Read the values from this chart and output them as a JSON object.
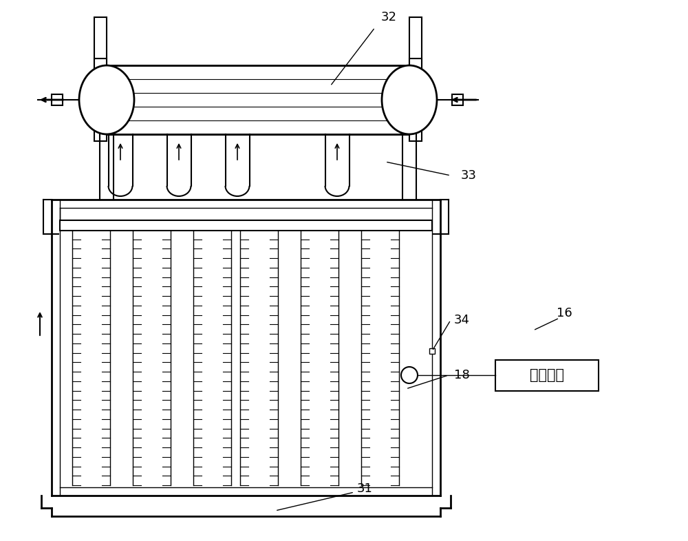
{
  "bg_color": "#ffffff",
  "line_color": "#000000",
  "label_32": "32",
  "label_33": "33",
  "label_34": "34",
  "label_18": "18",
  "label_31": "31",
  "label_16": "16",
  "control_system_text": "控制系统",
  "fig_width": 10.0,
  "fig_height": 7.86
}
